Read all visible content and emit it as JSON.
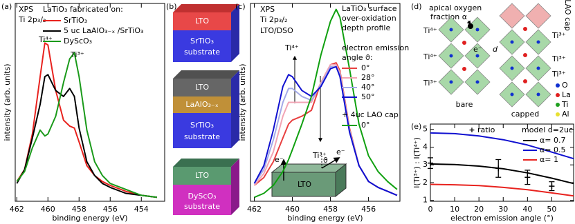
{
  "chart_data": [
    {
      "type": "line",
      "panel": "(a)",
      "xlabel": "binding energy (eV)",
      "ylabel": "intensity (arb. units)",
      "xlim": [
        462.1,
        452.5
      ],
      "ylim": [
        0,
        1
      ],
      "xticks": [
        462,
        460,
        458,
        456,
        454
      ],
      "x": [
        462,
        461.5,
        461,
        460.5,
        460.2,
        460,
        459.5,
        459,
        458.6,
        458.3,
        458,
        457.5,
        457,
        456.5,
        456,
        455,
        454,
        453
      ],
      "annotations": [
        "XPS",
        "Ti 2p₃/₂",
        "Ti⁴⁺",
        "Ti³⁺"
      ],
      "legend_title": "LaTiO₃ fabricated on:",
      "series": [
        {
          "name": "SrTiO₃",
          "color": "#e8221e",
          "values": [
            0.1,
            0.16,
            0.34,
            0.63,
            0.8,
            0.79,
            0.56,
            0.41,
            0.38,
            0.37,
            0.3,
            0.18,
            0.13,
            0.1,
            0.08,
            0.05,
            0.03,
            0.02
          ]
        },
        {
          "name": "5 uc LaAlO₃₋ₓ /SrTiO₃",
          "color": "#000000",
          "values": [
            0.09,
            0.16,
            0.32,
            0.49,
            0.63,
            0.64,
            0.56,
            0.53,
            0.57,
            0.53,
            0.37,
            0.2,
            0.13,
            0.09,
            0.07,
            0.04,
            0.03,
            0.02
          ]
        },
        {
          "name": "DyScO₃",
          "color": "#1a9a1a",
          "values": [
            0.1,
            0.15,
            0.27,
            0.36,
            0.33,
            0.34,
            0.43,
            0.6,
            0.72,
            0.75,
            0.63,
            0.36,
            0.2,
            0.13,
            0.09,
            0.06,
            0.03,
            0.02
          ]
        }
      ]
    },
    {
      "type": "line",
      "panel": "(c)",
      "xlabel": "binding energy (eV)",
      "ylabel": "intensity (arb. units)",
      "xlim": [
        462.2,
        454.35
      ],
      "ylim": [
        0,
        1
      ],
      "xticks": [
        462,
        460,
        458,
        456
      ],
      "x": [
        462,
        461.5,
        461,
        460.5,
        460.2,
        460,
        459.5,
        459,
        458.5,
        458,
        457.7,
        457.5,
        457,
        456.5,
        456,
        455.5,
        455,
        454.5
      ],
      "annotations": [
        "XPS",
        "Ti 2p₃/₂",
        "LTO/DSO",
        "LaTiO₃ surface",
        "over-oxidation",
        "depth profile",
        "Ti⁴⁺",
        "Ti³⁺",
        "LTO",
        "e⁻",
        "e⁻",
        "ϑ"
      ],
      "legend_title": [
        "electron emission",
        "angle ϑ:"
      ],
      "series": [
        {
          "name": "0°",
          "color": "#e84040",
          "values": [
            0.08,
            0.12,
            0.2,
            0.32,
            0.39,
            0.41,
            0.43,
            0.46,
            0.6,
            0.69,
            0.7,
            0.66,
            0.37,
            0.18,
            0.1,
            0.07,
            0.05,
            0.03
          ]
        },
        {
          "name": "28°",
          "color": "#f2a4b4",
          "values": [
            0.08,
            0.14,
            0.25,
            0.43,
            0.5,
            0.5,
            0.5,
            0.5,
            0.6,
            0.69,
            0.69,
            0.65,
            0.36,
            0.18,
            0.1,
            0.07,
            0.05,
            0.03
          ]
        },
        {
          "name": "40°",
          "color": "#a4aae8",
          "values": [
            0.09,
            0.16,
            0.31,
            0.5,
            0.57,
            0.57,
            0.53,
            0.51,
            0.59,
            0.68,
            0.68,
            0.64,
            0.36,
            0.18,
            0.1,
            0.07,
            0.05,
            0.03
          ]
        },
        {
          "name": "50°",
          "color": "#1010d0",
          "values": [
            0.09,
            0.18,
            0.36,
            0.58,
            0.64,
            0.63,
            0.56,
            0.53,
            0.58,
            0.67,
            0.68,
            0.63,
            0.35,
            0.18,
            0.1,
            0.07,
            0.05,
            0.03
          ]
        },
        {
          "name": "0°",
          "group": "+ 4uc LAO cap",
          "color": "#10a010",
          "values": [
            0.02,
            0.04,
            0.08,
            0.15,
            0.21,
            0.26,
            0.39,
            0.53,
            0.74,
            0.91,
            0.97,
            0.93,
            0.67,
            0.39,
            0.23,
            0.15,
            0.1,
            0.06
          ]
        }
      ]
    },
    {
      "type": "line",
      "panel": "(e)",
      "xlabel": "electron emission angle (°)",
      "ylabel": "I(Ti³⁺) : I(Ti⁴⁺)",
      "xlim": [
        0,
        59
      ],
      "ylim": [
        0.95,
        5.3
      ],
      "xticks": [
        0,
        10,
        20,
        30,
        40,
        50
      ],
      "yticks": [
        1,
        2,
        3,
        4,
        5
      ],
      "x": [
        0,
        10,
        20,
        30,
        40,
        50,
        59
      ],
      "legend_title": "model d=2uc",
      "series": [
        {
          "name": "α= 0.7",
          "color": "#000000",
          "values": [
            3.05,
            3.02,
            2.93,
            2.78,
            2.55,
            2.25,
            1.95
          ]
        },
        {
          "name": "α= 0.5",
          "color": "#1010d0",
          "values": [
            4.8,
            4.76,
            4.63,
            4.42,
            4.12,
            3.72,
            3.35
          ]
        },
        {
          "name": "α= 1",
          "color": "#e8221e",
          "values": [
            1.9,
            1.88,
            1.83,
            1.73,
            1.6,
            1.42,
            1.25
          ]
        }
      ],
      "points": {
        "name": "ratio",
        "marker": "+",
        "color": "#000000",
        "x": [
          0,
          28,
          40,
          50
        ],
        "values": [
          3.1,
          2.8,
          2.3,
          1.8
        ],
        "errors": [
          0.3,
          0.5,
          0.4,
          0.25
        ]
      }
    }
  ],
  "diagram_b": {
    "panel": "(b)",
    "blocks": [
      [
        "LTO",
        "SrTiO₃",
        "substrate"
      ],
      [
        "LTO",
        "LaAlO₃₋ₓ",
        "SrTiO₃",
        "substrate"
      ],
      [
        "LTO",
        "DyScO₃",
        "substrate"
      ]
    ]
  },
  "diagram_d": {
    "panel": "(d)",
    "apical": [
      "apical oxygen",
      "fraction α"
    ],
    "cap": "LAO cap",
    "d": "d",
    "electron": "e⁻",
    "bare": "bare",
    "capped": "capped",
    "left_ions": [
      "Ti⁴⁺",
      "Ti⁴⁺",
      "Ti³⁺"
    ],
    "right_ions": [
      "Ti³⁺",
      "Ti³⁺",
      "Ti³⁺"
    ],
    "legend": [
      "O",
      "La",
      "Ti",
      "Al"
    ]
  }
}
